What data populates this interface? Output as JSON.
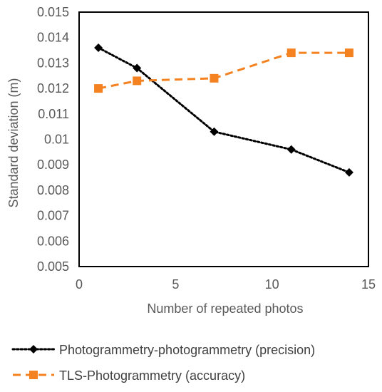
{
  "chart_data": {
    "type": "line",
    "title": "",
    "xlabel": "Number of repeated photos",
    "ylabel": "Standard deviation (m)",
    "xlim": [
      0,
      15
    ],
    "ylim": [
      0.005,
      0.015
    ],
    "x_ticks": [
      "0",
      "5",
      "10",
      "15"
    ],
    "y_ticks": [
      "0.005",
      "0.006",
      "0.007",
      "0.008",
      "0.009",
      "0.01",
      "0.011",
      "0.012",
      "0.013",
      "0.014",
      "0.015"
    ],
    "grid": false,
    "legend_position": "bottom",
    "series": [
      {
        "name": "Photogrammetry-photogrammetry (precision)",
        "color": "#000000",
        "line_style": "dotted",
        "marker": "diamond",
        "x": [
          1,
          3,
          7,
          11,
          14
        ],
        "y": [
          0.0136,
          0.0128,
          0.0103,
          0.0096,
          0.0087
        ]
      },
      {
        "name": "TLS-Photogrammetry (accuracy)",
        "color": "#f58220",
        "line_style": "dashed",
        "marker": "square",
        "x": [
          1,
          3,
          7,
          11,
          14
        ],
        "y": [
          0.012,
          0.0123,
          0.0124,
          0.0134,
          0.0134
        ]
      }
    ]
  }
}
